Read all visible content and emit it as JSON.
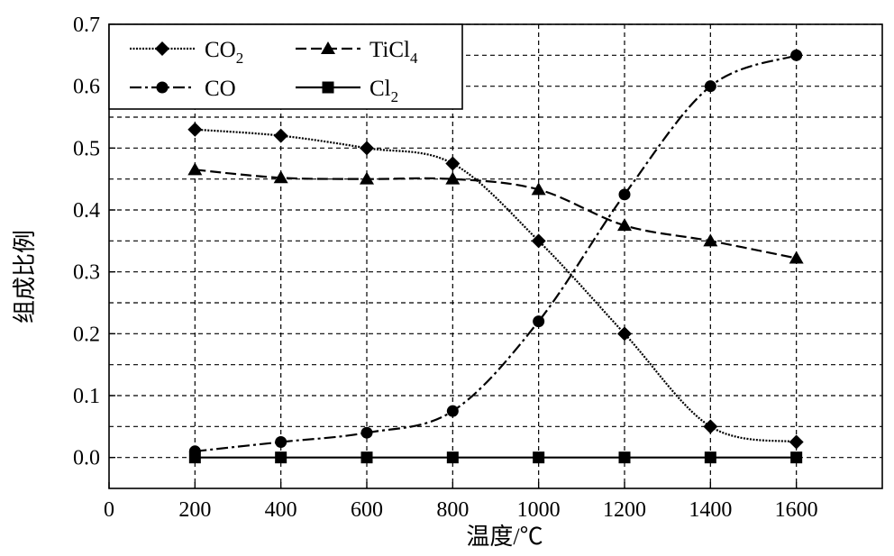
{
  "chart_data": {
    "type": "line",
    "xlabel": "温度/℃",
    "ylabel": "组成比例",
    "xlim": [
      0,
      1800
    ],
    "ylim": [
      -0.05,
      0.7
    ],
    "x_ticks": [
      "0",
      "200",
      "400",
      "600",
      "800",
      "1000",
      "1200",
      "1400",
      "1600"
    ],
    "y_ticks": [
      "0.0",
      "0.1",
      "0.2",
      "0.3",
      "0.4",
      "0.5",
      "0.6",
      "0.7"
    ],
    "grid": "dashed",
    "legend_position": "top-left",
    "x": [
      200,
      400,
      600,
      800,
      1000,
      1200,
      1400,
      1600
    ],
    "series": [
      {
        "name": "CO",
        "sub": "2",
        "marker": "diamond",
        "line": "dotted-solid",
        "values": [
          0.53,
          0.52,
          0.5,
          0.475,
          0.35,
          0.2,
          0.05,
          0.025
        ]
      },
      {
        "name": "CO",
        "sub": "",
        "marker": "circle",
        "line": "dash-dot",
        "values": [
          0.01,
          0.025,
          0.04,
          0.075,
          0.22,
          0.425,
          0.6,
          0.65
        ]
      },
      {
        "name": "TiCl",
        "sub": "4",
        "marker": "triangle",
        "line": "dashed",
        "values": [
          0.465,
          0.452,
          0.45,
          0.45,
          0.433,
          0.375,
          0.35,
          0.322
        ]
      },
      {
        "name": "Cl",
        "sub": "2",
        "marker": "square",
        "line": "solid",
        "values": [
          0.0,
          0.0,
          0.0,
          0.0,
          0.0,
          0.0,
          0.0,
          0.0
        ]
      }
    ]
  }
}
